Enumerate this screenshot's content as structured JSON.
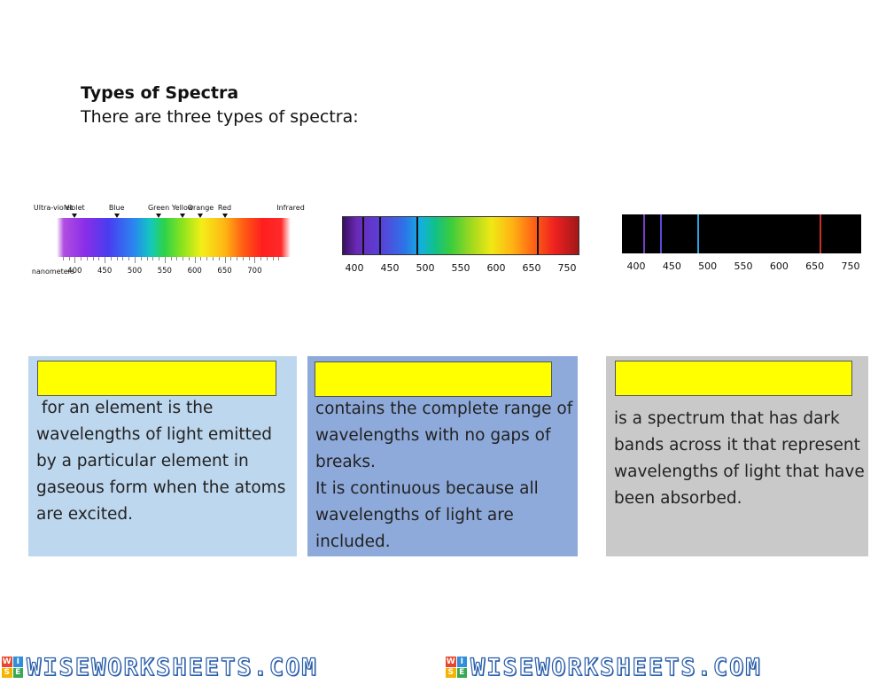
{
  "heading": {
    "title": "Types of Spectra",
    "intro": "There are three types of spectra:"
  },
  "spectrum_continuous": {
    "color_labels": [
      {
        "text": "Ultra-violet",
        "nm": 380
      },
      {
        "text": "Violet",
        "nm": 400
      },
      {
        "text": "Blue",
        "nm": 470
      },
      {
        "text": "Green",
        "nm": 540
      },
      {
        "text": "Yellow",
        "nm": 580
      },
      {
        "text": "Orange",
        "nm": 610
      },
      {
        "text": "Red",
        "nm": 650
      },
      {
        "text": "Infrared",
        "nm": 740
      }
    ],
    "axis_caption": "nanometers",
    "ticks": [
      "400",
      "450",
      "500",
      "550",
      "600",
      "650",
      "700"
    ]
  },
  "spectrum_absorption": {
    "ticks": [
      "400",
      "450",
      "500",
      "550",
      "600",
      "650",
      "750"
    ],
    "dark_lines_nm": [
      410,
      434,
      486,
      656
    ]
  },
  "spectrum_emission": {
    "ticks": [
      "400",
      "450",
      "500",
      "550",
      "600",
      "650",
      "750"
    ],
    "lines": [
      {
        "nm": 410,
        "color": "#7a3cc8"
      },
      {
        "nm": 434,
        "color": "#5a4ad8"
      },
      {
        "nm": 486,
        "color": "#2aa4e0"
      },
      {
        "nm": 656,
        "color": "#c8302a"
      }
    ]
  },
  "cards": [
    {
      "background": "#bdd7ee",
      "answer": "",
      "lines": [
        " for an element is the",
        "wavelengths of light emitted",
        "by a particular element in",
        "gaseous form when the atoms",
        "are excited."
      ]
    },
    {
      "background": "#8eaadb",
      "answer": "",
      "lines": [
        "contains the complete range of",
        "wavelengths with no gaps of",
        "breaks.",
        "It is continuous because all",
        "wavelengths of light are",
        "included."
      ]
    },
    {
      "background": "#c9c9c9",
      "answer": "",
      "lines": [
        "is a spectrum that has dark",
        "bands across it that represent",
        "wavelengths of light that have",
        "been absorbed."
      ]
    }
  ],
  "footer": {
    "brand": "WISEWORKSHEETS.COM",
    "logo_letters": [
      "W",
      "I",
      "S",
      "E"
    ],
    "logo_colors": [
      "#e8452c",
      "#2f8fd8",
      "#f4b400",
      "#38a852"
    ]
  }
}
